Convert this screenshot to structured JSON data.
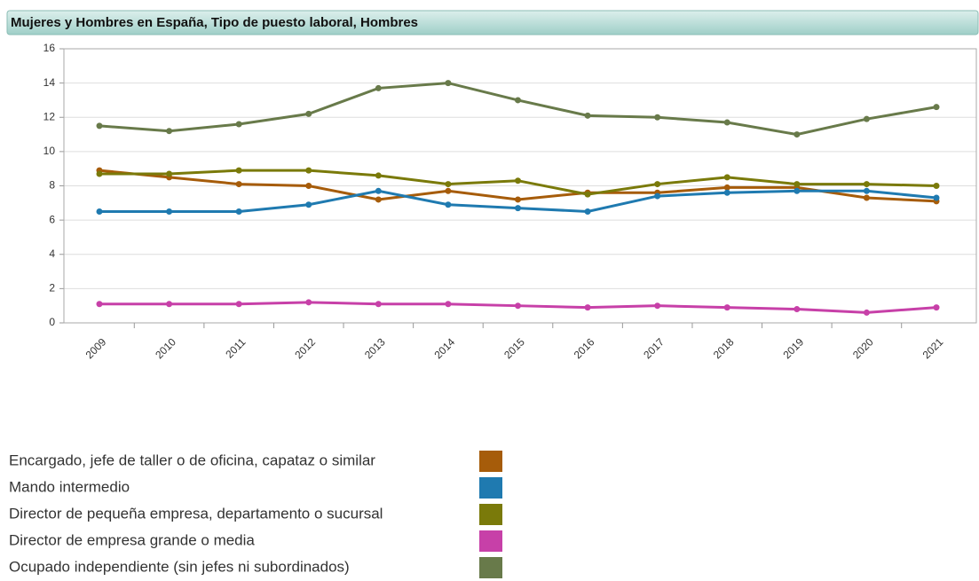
{
  "chart_data": {
    "type": "line",
    "title": "Mujeres y Hombres en España, Tipo de puesto laboral, Hombres",
    "categories": [
      "2009",
      "2010",
      "2011",
      "2012",
      "2013",
      "2014",
      "2015",
      "2016",
      "2017",
      "2018",
      "2019",
      "2020",
      "2021"
    ],
    "series": [
      {
        "name": "Encargado, jefe de taller o de oficina, capataz o similar",
        "color": "#a65c0a",
        "values": [
          8.9,
          8.5,
          8.1,
          8.0,
          7.2,
          7.7,
          7.2,
          7.6,
          7.6,
          7.9,
          7.9,
          7.3,
          7.1
        ]
      },
      {
        "name": "Mando intermedio",
        "color": "#1f7ab0",
        "values": [
          6.5,
          6.5,
          6.5,
          6.9,
          7.7,
          6.9,
          6.7,
          6.5,
          7.4,
          7.6,
          7.7,
          7.7,
          7.3
        ]
      },
      {
        "name": "Director de pequeña empresa, departamento o sucursal",
        "color": "#7a7a0a",
        "values": [
          8.7,
          8.7,
          8.9,
          8.9,
          8.6,
          8.1,
          8.3,
          7.5,
          8.1,
          8.5,
          8.1,
          8.1,
          8.0
        ]
      },
      {
        "name": "Director de empresa grande o media",
        "color": "#c740a8",
        "values": [
          1.1,
          1.1,
          1.1,
          1.2,
          1.1,
          1.1,
          1.0,
          0.9,
          1.0,
          0.9,
          0.8,
          0.6,
          0.9
        ]
      },
      {
        "name": "Ocupado independiente (sin jefes ni subordinados)",
        "color": "#687a4a",
        "values": [
          11.5,
          11.2,
          11.6,
          12.2,
          13.7,
          14.0,
          13.0,
          12.1,
          12.0,
          11.7,
          11.0,
          11.9,
          12.6
        ]
      }
    ],
    "ylim": [
      0,
      16
    ],
    "yticks": [
      0,
      2,
      4,
      6,
      8,
      10,
      12,
      14,
      16
    ],
    "grid": true
  }
}
